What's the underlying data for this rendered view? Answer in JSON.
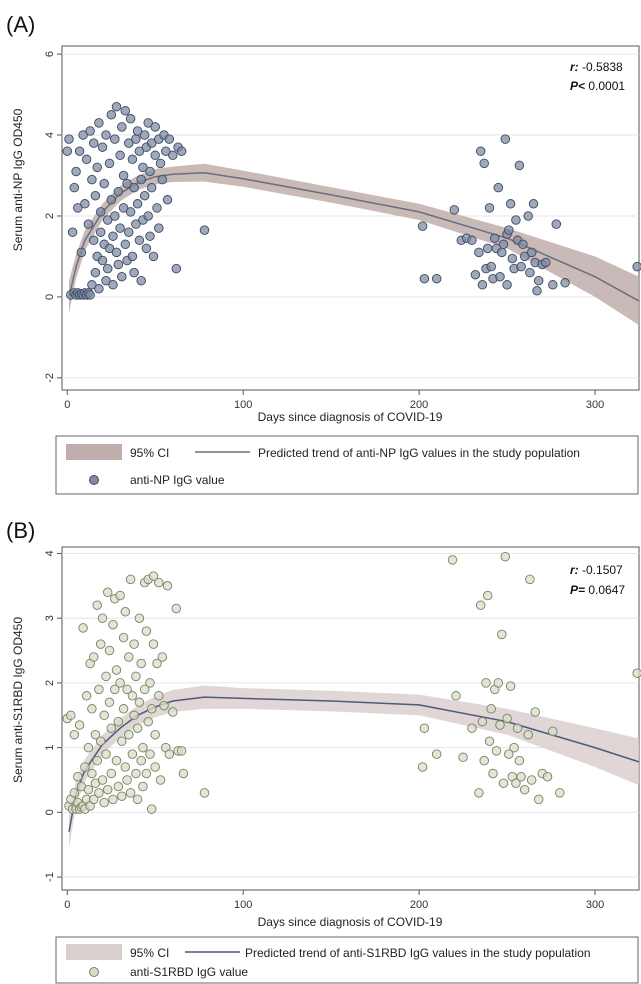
{
  "chart_data": [
    {
      "panel": "(A)",
      "type": "scatter",
      "xlabel": "Days since diagnosis of COVID-19",
      "ylabel": "Serum anti-NP IgG OD450",
      "xlim": [
        -3,
        325
      ],
      "ylim": [
        -2.3,
        6.2
      ],
      "xticks": [
        0,
        100,
        200,
        300
      ],
      "yticks": [
        -2,
        0,
        2,
        4,
        6
      ],
      "stats": {
        "r_label": "r:",
        "r_value": "-0.5838",
        "p_label": "P<",
        "p_value": "0.0001"
      },
      "legend": {
        "ci": "95% CI",
        "trend": "Predicted trend of anti-NP IgG values in the study population",
        "points": "anti-NP IgG value"
      },
      "colors": {
        "ci": "#bfaeac",
        "trend": "#66707e",
        "point_fill": "#7f8ca3",
        "point_stroke": "#3c4a64"
      },
      "trend": {
        "x": [
          1,
          5,
          10,
          20,
          30,
          40,
          50,
          60,
          78,
          100,
          150,
          200,
          250,
          300,
          325
        ],
        "y": [
          0.0,
          0.75,
          1.4,
          2.1,
          2.55,
          2.82,
          2.97,
          3.03,
          3.07,
          2.92,
          2.52,
          2.1,
          1.45,
          0.5,
          -0.1
        ],
        "lower": [
          -0.4,
          0.45,
          1.15,
          1.9,
          2.36,
          2.64,
          2.78,
          2.84,
          2.85,
          2.72,
          2.33,
          1.9,
          1.2,
          0.0,
          -0.7
        ],
        "upper": [
          0.4,
          1.05,
          1.65,
          2.3,
          2.74,
          3.0,
          3.16,
          3.22,
          3.29,
          3.12,
          2.71,
          2.3,
          1.7,
          1.0,
          0.5
        ]
      },
      "points": [
        [
          0,
          3.6
        ],
        [
          1,
          3.9
        ],
        [
          2,
          0.05
        ],
        [
          3,
          1.6
        ],
        [
          4,
          2.7
        ],
        [
          4,
          0.1
        ],
        [
          5,
          3.1
        ],
        [
          5,
          0.05
        ],
        [
          6,
          0.1
        ],
        [
          6,
          2.2
        ],
        [
          7,
          0.05
        ],
        [
          7,
          3.6
        ],
        [
          8,
          0.08
        ],
        [
          8,
          1.1
        ],
        [
          9,
          4.0
        ],
        [
          9,
          0.05
        ],
        [
          10,
          2.3
        ],
        [
          10,
          0.1
        ],
        [
          11,
          3.4
        ],
        [
          11,
          0.05
        ],
        [
          12,
          1.8
        ],
        [
          12,
          0.1
        ],
        [
          13,
          4.1
        ],
        [
          13,
          0.05
        ],
        [
          14,
          2.9
        ],
        [
          14,
          0.3
        ],
        [
          15,
          1.4
        ],
        [
          15,
          3.8
        ],
        [
          16,
          0.6
        ],
        [
          16,
          2.5
        ],
        [
          17,
          1.0
        ],
        [
          17,
          3.2
        ],
        [
          18,
          0.2
        ],
        [
          18,
          4.3
        ],
        [
          19,
          1.6
        ],
        [
          19,
          2.1
        ],
        [
          20,
          0.9
        ],
        [
          20,
          3.7
        ],
        [
          21,
          1.3
        ],
        [
          21,
          2.8
        ],
        [
          22,
          0.4
        ],
        [
          22,
          4.0
        ],
        [
          23,
          1.9
        ],
        [
          23,
          0.7
        ],
        [
          24,
          3.3
        ],
        [
          24,
          1.2
        ],
        [
          25,
          2.4
        ],
        [
          25,
          4.5
        ],
        [
          26,
          1.5
        ],
        [
          26,
          0.3
        ],
        [
          27,
          3.9
        ],
        [
          27,
          2.0
        ],
        [
          28,
          1.1
        ],
        [
          28,
          4.7
        ],
        [
          29,
          2.6
        ],
        [
          29,
          0.8
        ],
        [
          30,
          3.5
        ],
        [
          30,
          1.7
        ],
        [
          31,
          4.2
        ],
        [
          31,
          0.5
        ],
        [
          32,
          2.2
        ],
        [
          32,
          3.0
        ],
        [
          33,
          1.3
        ],
        [
          33,
          4.6
        ],
        [
          34,
          2.8
        ],
        [
          34,
          0.9
        ],
        [
          35,
          3.8
        ],
        [
          35,
          1.6
        ],
        [
          36,
          4.4
        ],
        [
          36,
          2.1
        ],
        [
          37,
          1.0
        ],
        [
          37,
          3.4
        ],
        [
          38,
          2.7
        ],
        [
          38,
          0.6
        ],
        [
          39,
          3.9
        ],
        [
          39,
          1.8
        ],
        [
          40,
          4.1
        ],
        [
          40,
          2.3
        ],
        [
          41,
          1.4
        ],
        [
          41,
          3.6
        ],
        [
          42,
          2.9
        ],
        [
          42,
          0.4
        ],
        [
          43,
          3.2
        ],
        [
          43,
          1.9
        ],
        [
          44,
          4.0
        ],
        [
          44,
          2.5
        ],
        [
          45,
          1.2
        ],
        [
          45,
          3.7
        ],
        [
          46,
          2.0
        ],
        [
          46,
          4.3
        ],
        [
          47,
          3.1
        ],
        [
          47,
          1.5
        ],
        [
          48,
          3.8
        ],
        [
          48,
          2.7
        ],
        [
          49,
          1.0
        ],
        [
          50,
          3.5
        ],
        [
          50,
          4.2
        ],
        [
          51,
          2.2
        ],
        [
          52,
          3.9
        ],
        [
          52,
          1.7
        ],
        [
          53,
          3.3
        ],
        [
          54,
          2.9
        ],
        [
          55,
          4.0
        ],
        [
          56,
          3.6
        ],
        [
          57,
          2.4
        ],
        [
          58,
          3.9
        ],
        [
          60,
          3.5
        ],
        [
          62,
          0.7
        ],
        [
          63,
          3.7
        ],
        [
          65,
          3.6
        ],
        [
          78,
          1.65
        ],
        [
          202,
          1.75
        ],
        [
          203,
          0.45
        ],
        [
          210,
          0.45
        ],
        [
          220,
          2.15
        ],
        [
          224,
          1.4
        ],
        [
          227,
          1.45
        ],
        [
          230,
          1.4
        ],
        [
          232,
          0.55
        ],
        [
          234,
          1.1
        ],
        [
          235,
          3.6
        ],
        [
          236,
          0.3
        ],
        [
          237,
          3.3
        ],
        [
          238,
          0.7
        ],
        [
          239,
          1.2
        ],
        [
          240,
          2.2
        ],
        [
          241,
          0.75
        ],
        [
          242,
          0.45
        ],
        [
          243,
          1.45
        ],
        [
          244,
          1.2
        ],
        [
          245,
          2.7
        ],
        [
          246,
          0.5
        ],
        [
          247,
          1.1
        ],
        [
          248,
          1.3
        ],
        [
          249,
          3.9
        ],
        [
          250,
          1.55
        ],
        [
          250,
          0.3
        ],
        [
          251,
          1.65
        ],
        [
          252,
          2.3
        ],
        [
          253,
          0.95
        ],
        [
          254,
          0.7
        ],
        [
          255,
          1.9
        ],
        [
          256,
          1.4
        ],
        [
          257,
          3.25
        ],
        [
          258,
          0.75
        ],
        [
          259,
          1.3
        ],
        [
          260,
          1.0
        ],
        [
          262,
          2.0
        ],
        [
          263,
          0.6
        ],
        [
          264,
          1.1
        ],
        [
          265,
          2.3
        ],
        [
          266,
          0.85
        ],
        [
          267,
          0.15
        ],
        [
          268,
          0.4
        ],
        [
          270,
          0.8
        ],
        [
          272,
          0.85
        ],
        [
          276,
          0.3
        ],
        [
          278,
          1.8
        ],
        [
          283,
          0.35
        ],
        [
          324,
          0.75
        ]
      ]
    },
    {
      "panel": "(B)",
      "type": "scatter",
      "xlabel": "Days since diagnosis of COVID-19",
      "ylabel": "Serum anti-S1RBD IgG OD450",
      "xlim": [
        -3,
        325
      ],
      "ylim": [
        -1.2,
        4.1
      ],
      "xticks": [
        0,
        100,
        200,
        300
      ],
      "yticks": [
        -1,
        0,
        1,
        2,
        3,
        4
      ],
      "stats": {
        "r_label": "r:",
        "r_value": "-0.1507",
        "p_label": "P=",
        "p_value": "0.0647"
      },
      "legend": {
        "ci": "95% CI",
        "trend": "Predicted trend of anti-S1RBD IgG values in the study population",
        "points": "anti-S1RBD IgG value"
      },
      "colors": {
        "ci": "#d9cfce",
        "trend": "#4d5a78",
        "point_fill": "#d7ddc8",
        "point_stroke": "#7a8163"
      },
      "trend": {
        "x": [
          1,
          5,
          10,
          20,
          30,
          40,
          50,
          60,
          78,
          100,
          150,
          200,
          250,
          300,
          325
        ],
        "y": [
          -0.3,
          0.3,
          0.65,
          1.05,
          1.3,
          1.5,
          1.63,
          1.72,
          1.78,
          1.76,
          1.72,
          1.66,
          1.4,
          1.0,
          0.78
        ],
        "lower": [
          -0.55,
          0.1,
          0.48,
          0.9,
          1.15,
          1.35,
          1.47,
          1.55,
          1.6,
          1.6,
          1.56,
          1.5,
          1.2,
          0.7,
          0.42
        ],
        "upper": [
          -0.05,
          0.5,
          0.82,
          1.2,
          1.45,
          1.65,
          1.79,
          1.89,
          1.96,
          1.92,
          1.88,
          1.82,
          1.6,
          1.3,
          1.14
        ]
      },
      "points": [
        [
          0,
          1.45
        ],
        [
          1,
          0.1
        ],
        [
          2,
          1.5
        ],
        [
          2,
          0.2
        ],
        [
          3,
          0.05
        ],
        [
          4,
          0.3
        ],
        [
          4,
          1.2
        ],
        [
          5,
          0.1
        ],
        [
          5,
          0.05
        ],
        [
          6,
          0.55
        ],
        [
          6,
          0.15
        ],
        [
          7,
          0.05
        ],
        [
          7,
          1.35
        ],
        [
          8,
          0.4
        ],
        [
          8,
          0.08
        ],
        [
          9,
          2.85
        ],
        [
          9,
          0.1
        ],
        [
          10,
          0.7
        ],
        [
          10,
          0.05
        ],
        [
          11,
          1.8
        ],
        [
          11,
          0.2
        ],
        [
          12,
          1.0
        ],
        [
          12,
          0.35
        ],
        [
          13,
          2.3
        ],
        [
          13,
          0.1
        ],
        [
          14,
          1.6
        ],
        [
          14,
          0.6
        ],
        [
          15,
          0.2
        ],
        [
          15,
          2.4
        ],
        [
          16,
          1.2
        ],
        [
          16,
          0.45
        ],
        [
          17,
          3.2
        ],
        [
          17,
          0.8
        ],
        [
          18,
          1.9
        ],
        [
          18,
          0.3
        ],
        [
          19,
          2.6
        ],
        [
          19,
          1.1
        ],
        [
          20,
          0.5
        ],
        [
          20,
          3.0
        ],
        [
          21,
          1.5
        ],
        [
          21,
          0.15
        ],
        [
          22,
          2.1
        ],
        [
          22,
          0.9
        ],
        [
          23,
          3.4
        ],
        [
          23,
          0.35
        ],
        [
          24,
          1.7
        ],
        [
          24,
          2.5
        ],
        [
          25,
          0.6
        ],
        [
          25,
          1.3
        ],
        [
          26,
          2.9
        ],
        [
          26,
          0.2
        ],
        [
          27,
          1.9
        ],
        [
          27,
          3.3
        ],
        [
          28,
          0.8
        ],
        [
          28,
          2.2
        ],
        [
          29,
          1.4
        ],
        [
          29,
          0.4
        ],
        [
          30,
          3.35
        ],
        [
          30,
          2.0
        ],
        [
          31,
          1.1
        ],
        [
          31,
          0.25
        ],
        [
          32,
          2.7
        ],
        [
          32,
          1.6
        ],
        [
          33,
          0.7
        ],
        [
          33,
          3.1
        ],
        [
          34,
          1.9
        ],
        [
          34,
          0.5
        ],
        [
          35,
          2.4
        ],
        [
          35,
          1.2
        ],
        [
          36,
          0.3
        ],
        [
          36,
          3.6
        ],
        [
          37,
          1.8
        ],
        [
          37,
          0.9
        ],
        [
          38,
          2.6
        ],
        [
          38,
          1.5
        ],
        [
          39,
          0.6
        ],
        [
          39,
          2.1
        ],
        [
          40,
          1.3
        ],
        [
          40,
          0.2
        ],
        [
          41,
          3.0
        ],
        [
          41,
          1.7
        ],
        [
          42,
          0.8
        ],
        [
          42,
          2.3
        ],
        [
          43,
          1.0
        ],
        [
          43,
          0.4
        ],
        [
          44,
          3.55
        ],
        [
          44,
          1.9
        ],
        [
          45,
          0.6
        ],
        [
          45,
          2.8
        ],
        [
          46,
          1.4
        ],
        [
          46,
          3.6
        ],
        [
          47,
          0.9
        ],
        [
          47,
          2.0
        ],
        [
          48,
          1.6
        ],
        [
          48,
          0.05
        ],
        [
          49,
          2.6
        ],
        [
          49,
          3.65
        ],
        [
          50,
          1.2
        ],
        [
          50,
          0.7
        ],
        [
          51,
          2.3
        ],
        [
          52,
          1.8
        ],
        [
          52,
          3.55
        ],
        [
          53,
          0.5
        ],
        [
          54,
          2.4
        ],
        [
          55,
          1.65
        ],
        [
          56,
          1.0
        ],
        [
          57,
          3.5
        ],
        [
          58,
          0.9
        ],
        [
          60,
          1.55
        ],
        [
          62,
          3.15
        ],
        [
          63,
          0.95
        ],
        [
          65,
          0.95
        ],
        [
          66,
          0.6
        ],
        [
          78,
          0.3
        ],
        [
          202,
          0.7
        ],
        [
          203,
          1.3
        ],
        [
          210,
          0.9
        ],
        [
          219,
          3.9
        ],
        [
          221,
          1.8
        ],
        [
          225,
          0.85
        ],
        [
          230,
          1.3
        ],
        [
          234,
          0.3
        ],
        [
          235,
          3.2
        ],
        [
          236,
          1.4
        ],
        [
          237,
          0.8
        ],
        [
          238,
          2.0
        ],
        [
          239,
          3.35
        ],
        [
          240,
          1.1
        ],
        [
          241,
          1.6
        ],
        [
          242,
          0.6
        ],
        [
          243,
          1.9
        ],
        [
          244,
          0.95
        ],
        [
          245,
          2.0
        ],
        [
          246,
          1.35
        ],
        [
          247,
          2.75
        ],
        [
          248,
          0.45
        ],
        [
          249,
          3.95
        ],
        [
          250,
          1.45
        ],
        [
          251,
          0.9
        ],
        [
          252,
          1.95
        ],
        [
          253,
          0.55
        ],
        [
          254,
          1.0
        ],
        [
          255,
          0.45
        ],
        [
          256,
          1.3
        ],
        [
          257,
          0.8
        ],
        [
          258,
          0.55
        ],
        [
          260,
          0.35
        ],
        [
          262,
          1.2
        ],
        [
          263,
          3.6
        ],
        [
          264,
          0.5
        ],
        [
          266,
          1.55
        ],
        [
          268,
          0.2
        ],
        [
          270,
          0.6
        ],
        [
          273,
          0.55
        ],
        [
          276,
          1.25
        ],
        [
          280,
          0.3
        ],
        [
          324,
          2.15
        ]
      ]
    }
  ]
}
